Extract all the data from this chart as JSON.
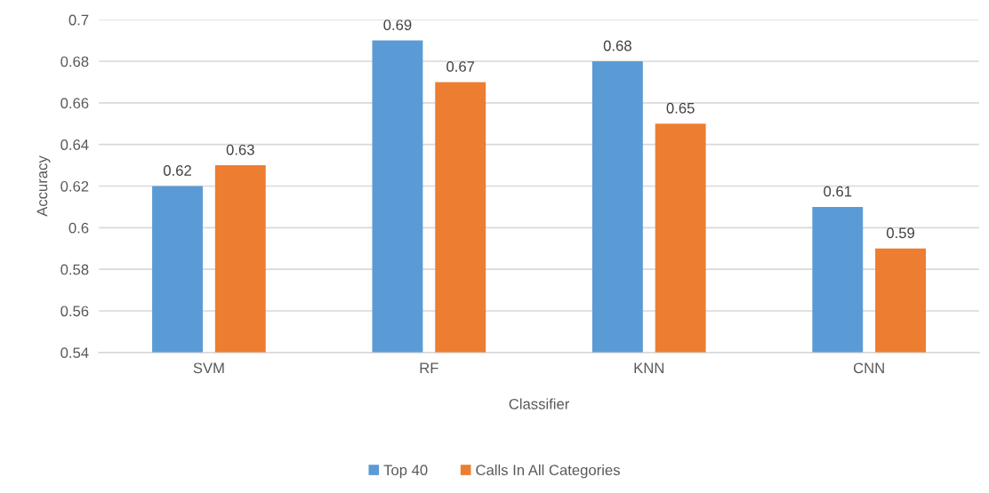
{
  "chart_data": {
    "type": "bar",
    "xlabel": "Classifier",
    "ylabel": "Accuracy",
    "categories": [
      "SVM",
      "RF",
      "KNN",
      "CNN"
    ],
    "series": [
      {
        "name": "Top 40",
        "color": "#5b9bd5",
        "values": [
          0.62,
          0.69,
          0.68,
          0.61
        ]
      },
      {
        "name": "Calls In All Categories",
        "color": "#ed7d31",
        "values": [
          0.63,
          0.67,
          0.65,
          0.59
        ]
      }
    ],
    "ylim": [
      0.54,
      0.7
    ],
    "yticks": [
      0.54,
      0.56,
      0.58,
      0.6,
      0.62,
      0.64,
      0.66,
      0.68,
      0.7
    ],
    "grid": "y",
    "legend": "bottom",
    "data_labels": true
  }
}
